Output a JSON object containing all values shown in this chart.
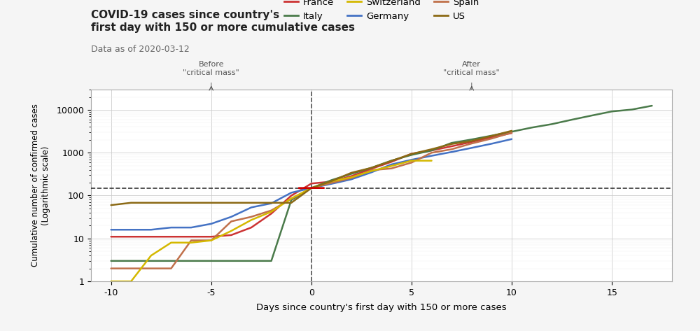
{
  "title": "COVID-19 cases since country's\nfirst day with 150 or more cumulative cases",
  "subtitle": "Data as of 2020-03-12",
  "xlabel": "Days since country's first day with 150 or more cases",
  "ylabel": "Cumulative number of confirmed cases\n(Logarithmic scale)",
  "bg_color": "#f5f5f5",
  "plot_bg_color": "#ffffff",
  "annotation_before": "Before\n\"critical mass\"",
  "annotation_after": "After\n\"critical mass\"",
  "countries": {
    "France": {
      "color": "#cc3333",
      "x": [
        -10,
        -9,
        -8,
        -7,
        -6,
        -5,
        -4,
        -3,
        -2,
        -1,
        0,
        1,
        2,
        3,
        4,
        5,
        6,
        7,
        8,
        9,
        10
      ],
      "y": [
        11,
        11,
        11,
        11,
        11,
        11,
        12,
        18,
        38,
        100,
        191,
        212,
        285,
        423,
        613,
        949,
        1126,
        1412,
        1784,
        2281,
        2876
      ]
    },
    "Germany": {
      "color": "#4472c4",
      "x": [
        -10,
        -9,
        -8,
        -7,
        -6,
        -5,
        -4,
        -3,
        -2,
        -1,
        0,
        1,
        2,
        3,
        4,
        5,
        6,
        7,
        8,
        9,
        10
      ],
      "y": [
        16,
        16,
        16,
        18,
        18,
        22,
        32,
        53,
        66,
        117,
        150,
        188,
        240,
        349,
        534,
        684,
        847,
        1040,
        1296,
        1622,
        2078
      ]
    },
    "Italy": {
      "color": "#4a7a4a",
      "x": [
        -10,
        -9,
        -8,
        -7,
        -6,
        -5,
        -4,
        -3,
        -2,
        -1,
        0,
        1,
        2,
        3,
        4,
        5,
        6,
        7,
        8,
        9,
        10,
        11,
        12,
        13,
        14,
        15,
        16,
        17
      ],
      "y": [
        3,
        3,
        3,
        3,
        3,
        3,
        3,
        3,
        3,
        79,
        150,
        229,
        322,
        445,
        655,
        889,
        1128,
        1694,
        2036,
        2502,
        3089,
        3858,
        4636,
        5883,
        7375,
        9172,
        10149,
        12462
      ]
    },
    "Spain": {
      "color": "#c0704a",
      "x": [
        -10,
        -9,
        -8,
        -7,
        -6,
        -5,
        -4,
        -3,
        -2,
        -1,
        0,
        1,
        2,
        3,
        4,
        5,
        6,
        7,
        8,
        9,
        10
      ],
      "y": [
        2,
        2,
        2,
        2,
        9,
        9,
        25,
        32,
        45,
        84,
        150,
        198,
        258,
        391,
        430,
        589,
        999,
        1204,
        1639,
        2140,
        2950
      ]
    },
    "Switzerland": {
      "color": "#d4b800",
      "x": [
        -10,
        -9,
        -8,
        -7,
        -6,
        -5,
        -4,
        -3,
        -2,
        -1,
        0,
        1,
        2,
        3,
        4,
        5,
        6
      ],
      "y": [
        1,
        1,
        4,
        8,
        8,
        9,
        15,
        27,
        42,
        86,
        150,
        214,
        268,
        374,
        491,
        652,
        652
      ]
    },
    "US": {
      "color": "#8b6914",
      "x": [
        -10,
        -9,
        -8,
        -7,
        -6,
        -5,
        -4,
        -3,
        -2,
        -1,
        0,
        1,
        2,
        3,
        4,
        5,
        6,
        7,
        8,
        9,
        10
      ],
      "y": [
        60,
        68,
        68,
        68,
        68,
        68,
        68,
        68,
        68,
        68,
        150,
        217,
        341,
        445,
        645,
        936,
        1205,
        1598,
        1875,
        2459,
        3244
      ]
    }
  }
}
